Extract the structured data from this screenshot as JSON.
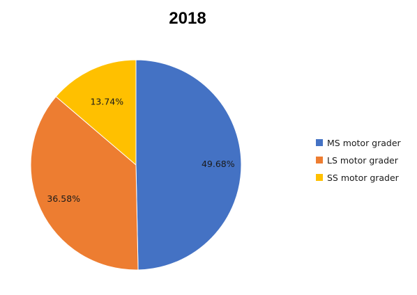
{
  "chart_data": {
    "type": "pie",
    "title": "2018",
    "legend_position": "right",
    "slices": [
      {
        "name": "MS motor grader",
        "value": 49.68,
        "label": "49.68%",
        "color": "#4472C4"
      },
      {
        "name": "LS motor grader",
        "value": 36.58,
        "label": "36.58%",
        "color": "#ED7D31"
      },
      {
        "name": "SS motor grader",
        "value": 13.74,
        "label": "13.74%",
        "color": "#FFC000"
      }
    ]
  }
}
